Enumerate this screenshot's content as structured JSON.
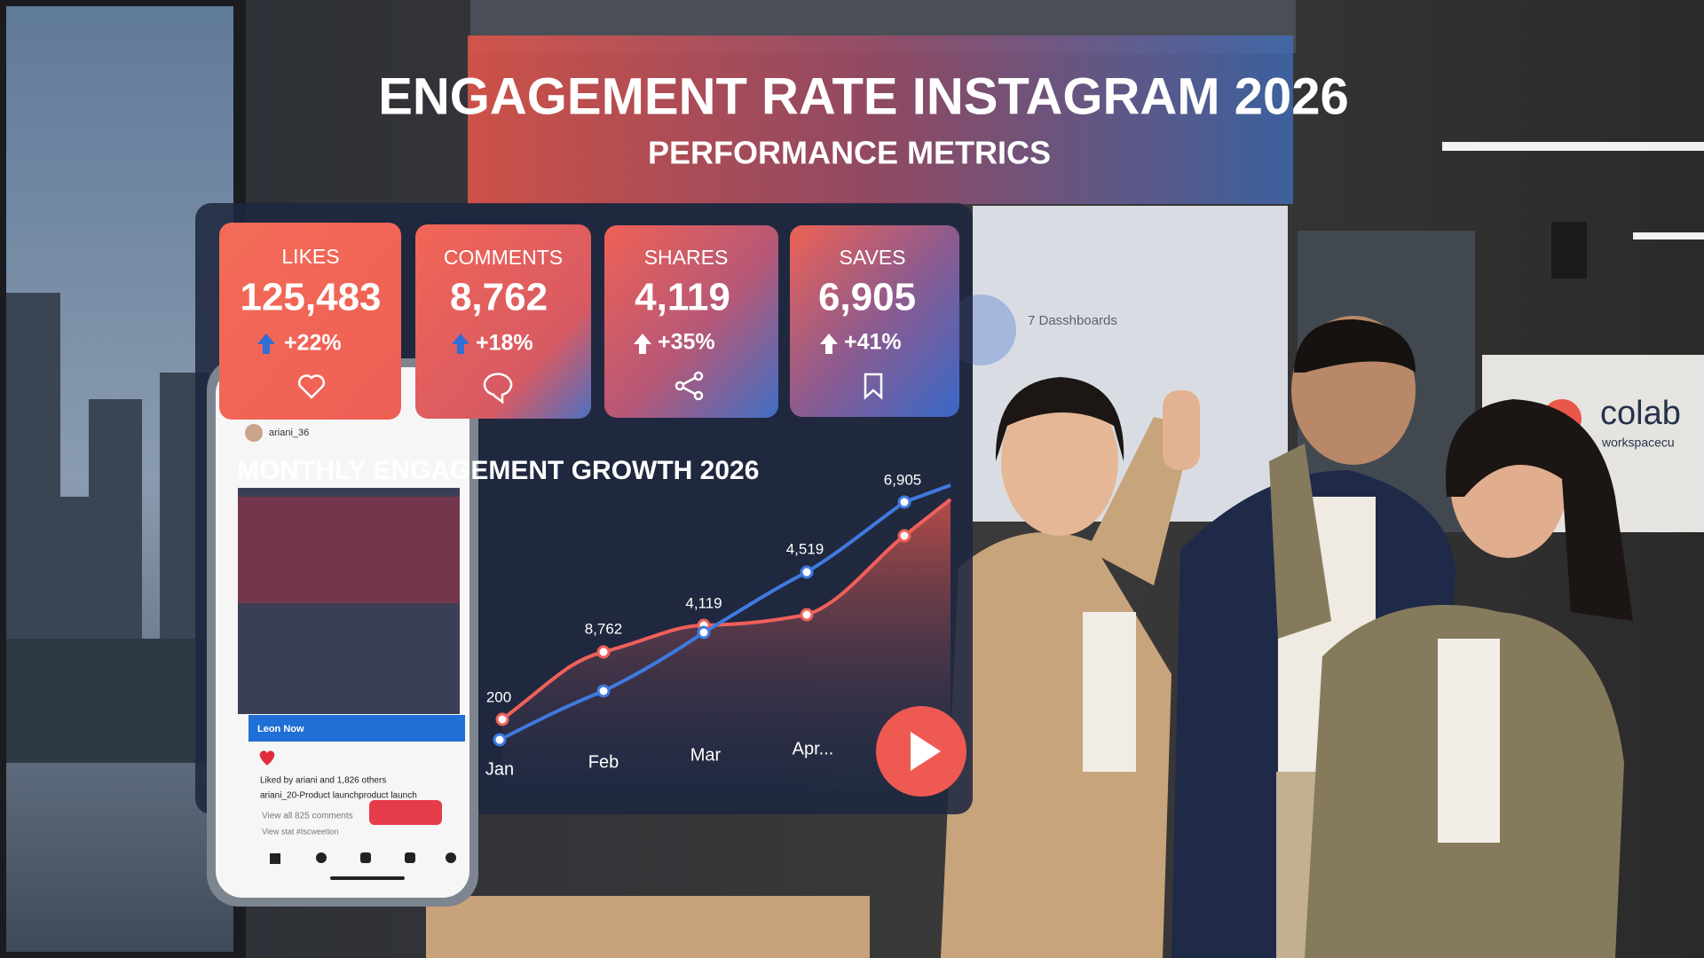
{
  "header": {
    "title": "ENGAGEMENT RATE INSTAGRAM 2026",
    "subtitle": "PERFORMANCE METRICS"
  },
  "metrics": [
    {
      "label": "LIKES",
      "value": "125,483",
      "change": "+22%"
    },
    {
      "label": "COMMENTS",
      "value": "8,762",
      "change": "+18%"
    },
    {
      "label": "SHARES",
      "value": "4,119",
      "change": "+35%"
    },
    {
      "label": "SAVES",
      "value": "6,905",
      "change": "+41%"
    }
  ],
  "chart": {
    "title": "MONTHLY ENGAGEMENT GROWTH 2026",
    "categories": [
      "Jan",
      "Feb",
      "Mar",
      "Apr..."
    ],
    "point_labels": [
      "200",
      "8,762",
      "4,119",
      "4,519",
      "6,905"
    ]
  },
  "phone": {
    "username": "ariani_36",
    "banner": "Leon Now",
    "likes": "Liked by ariani and 1,826 others",
    "caption": "ariani_20-Product launchproduct launch",
    "comments": "View all 825 comments",
    "footer": "View stat #Iscweetion"
  },
  "background": {
    "screen_text": "7 Dasshboards",
    "logo": "colab",
    "logo_sub": "workspacecu"
  }
}
